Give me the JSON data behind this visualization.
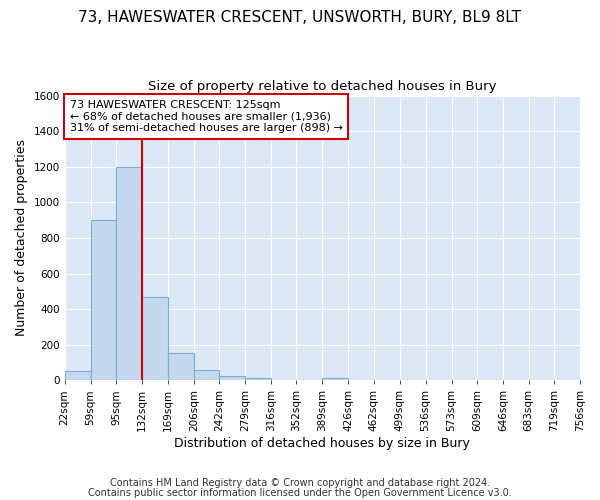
{
  "title": "73, HAWESWATER CRESCENT, UNSWORTH, BURY, BL9 8LT",
  "subtitle": "Size of property relative to detached houses in Bury",
  "xlabel": "Distribution of detached houses by size in Bury",
  "ylabel": "Number of detached properties",
  "footnote1": "Contains HM Land Registry data © Crown copyright and database right 2024.",
  "footnote2": "Contains public sector information licensed under the Open Government Licence v3.0.",
  "annotation_line1": "73 HAWESWATER CRESCENT: 125sqm",
  "annotation_line2": "← 68% of detached houses are smaller (1,936)",
  "annotation_line3": "31% of semi-detached houses are larger (898) →",
  "bar_edges": [
    22,
    59,
    95,
    132,
    169,
    206,
    242,
    279,
    316,
    352,
    389,
    426,
    462,
    499,
    536,
    573,
    609,
    646,
    683,
    719,
    756
  ],
  "bar_heights": [
    50,
    900,
    1200,
    470,
    155,
    60,
    25,
    15,
    0,
    0,
    15,
    0,
    0,
    0,
    0,
    0,
    0,
    0,
    0,
    0
  ],
  "bar_color": "#c5d8ee",
  "bar_edge_color": "#7aaed4",
  "vline_x": 132,
  "vline_color": "#cc0000",
  "ylim": [
    0,
    1600
  ],
  "yticks": [
    0,
    200,
    400,
    600,
    800,
    1000,
    1200,
    1400,
    1600
  ],
  "background_color": "#ffffff",
  "plot_bg_color": "#dce8f5",
  "annotation_box_color": "#ffffff",
  "annotation_box_edge": "#cc0000",
  "title_fontsize": 11,
  "subtitle_fontsize": 9.5,
  "axis_label_fontsize": 9,
  "tick_fontsize": 7.5,
  "annotation_fontsize": 8,
  "footnote_fontsize": 7
}
